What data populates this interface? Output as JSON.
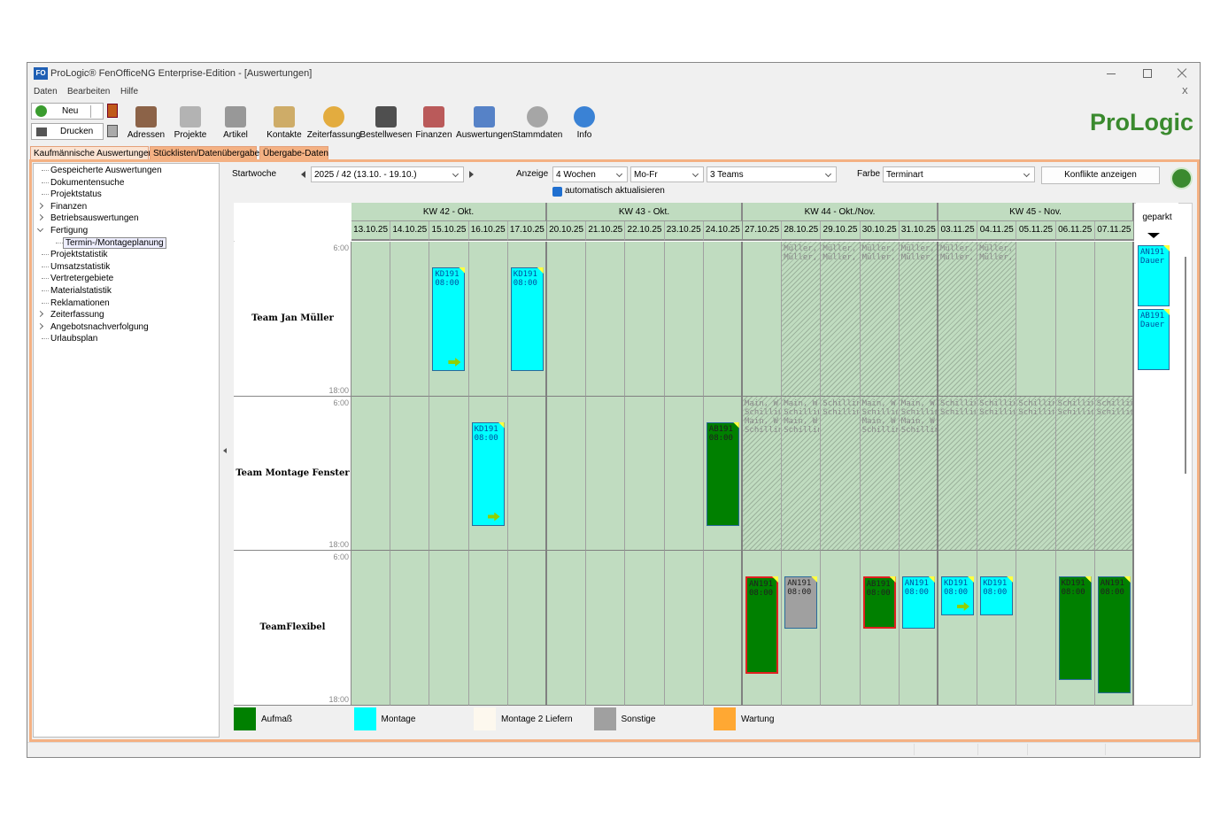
{
  "window": {
    "icon": "FO",
    "title": "ProLogic® FenOfficeNG Enterprise-Edition - [Auswertungen]"
  },
  "menu": {
    "items": [
      "Daten",
      "Bearbeiten",
      "Hilfe"
    ],
    "close": "X"
  },
  "toolbar": {
    "new": "Neu",
    "print": "Drucken",
    "buttons": [
      "Adressen",
      "Projekte",
      "Artikel",
      "Kontakte",
      "Zeiterfassung",
      "Bestellwesen",
      "Finanzen",
      "Auswertungen",
      "Stammdaten",
      "Info"
    ],
    "brand": "ProLogic"
  },
  "tabs": [
    "Kaufmännische Auswertungen",
    "Stücklisten/Datenübergaben",
    "Übergabe-Daten"
  ],
  "tree": [
    {
      "label": "Gespeicherte Auswertungen"
    },
    {
      "label": "Dokumentensuche"
    },
    {
      "label": "Projektstatus"
    },
    {
      "label": "Finanzen",
      "state": "collapsed"
    },
    {
      "label": "Betriebsauswertungen",
      "state": "collapsed"
    },
    {
      "label": "Fertigung",
      "state": "expanded",
      "children": [
        {
          "label": "Termin-/Montageplanung",
          "selected": true
        }
      ]
    },
    {
      "label": "Projektstatistik"
    },
    {
      "label": "Umsatzstatistik"
    },
    {
      "label": "Vertretergebiete"
    },
    {
      "label": "Materialstatistik"
    },
    {
      "label": "Reklamationen"
    },
    {
      "label": "Zeiterfassung",
      "state": "collapsed"
    },
    {
      "label": "Angebotsnachverfolgung",
      "state": "collapsed"
    },
    {
      "label": "Urlaubsplan"
    }
  ],
  "filters": {
    "start_label": "Startwoche",
    "start_week": "2025 / 42 (13.10. - 19.10.)",
    "display_label": "Anzeige",
    "display": "4 Wochen",
    "days": "Mo-Fr",
    "teams": "3 Teams",
    "color_label": "Farbe",
    "color_mode": "Terminart",
    "conflicts_button": "Konflikte anzeigen",
    "auto_refresh": "automatisch aktualisieren",
    "auto_refresh_checked": true
  },
  "calendar": {
    "weeks": [
      "KW 42 - Okt.",
      "KW 43 - Okt.",
      "KW 44 - Okt./Nov.",
      "KW 45 - Nov."
    ],
    "dates": [
      "13.10.25",
      "14.10.25",
      "15.10.25",
      "16.10.25",
      "17.10.25",
      "20.10.25",
      "21.10.25",
      "22.10.25",
      "23.10.25",
      "24.10.25",
      "27.10.25",
      "28.10.25",
      "29.10.25",
      "30.10.25",
      "31.10.25",
      "03.11.25",
      "04.11.25",
      "05.11.25",
      "06.11.25",
      "07.11.25"
    ],
    "time_start": "6:00",
    "time_end": "18:00",
    "teams": [
      {
        "name": "Team Jan Müller",
        "events": [
          null,
          null,
          {
            "lines": [
              "KD191",
              "08:00"
            ],
            "color": "#00ffff",
            "arrow": true
          },
          null,
          {
            "lines": [
              "KD191",
              "08:00"
            ],
            "color": "#00ffff"
          },
          null,
          null,
          null,
          null,
          null,
          null,
          null,
          null,
          null,
          null,
          null,
          null,
          null,
          null,
          null
        ],
        "blocked": [
          null,
          null,
          null,
          null,
          null,
          null,
          null,
          null,
          null,
          null,
          null,
          [
            "Müller, J",
            "Müller, J"
          ],
          [
            "Müller, J",
            "Müller, J"
          ],
          [
            "Müller, J",
            "Müller, J"
          ],
          [
            "Müller, J",
            "Müller, J"
          ],
          [
            "Müller, J",
            "Müller, J"
          ],
          [
            "Müller, J",
            "Müller, J"
          ],
          null,
          null,
          null
        ]
      },
      {
        "name": "Team Montage Fenster",
        "events": [
          null,
          null,
          null,
          {
            "lines": [
              "KD191",
              "08:00"
            ],
            "color": "#00ffff",
            "arrow": true
          },
          null,
          null,
          null,
          null,
          null,
          {
            "lines": [
              "AB191",
              "08:00"
            ],
            "color": "#008000"
          },
          null,
          null,
          null,
          null,
          null,
          null,
          null,
          null,
          null,
          null
        ],
        "blocked": [
          null,
          null,
          null,
          null,
          null,
          null,
          null,
          null,
          null,
          null,
          [
            "Main, W",
            "Schilling,",
            "Main, W",
            "Schilling,"
          ],
          [
            "Main, W",
            "Schilling,",
            "Main, W",
            "Schilling,"
          ],
          [
            "Schilling,",
            "Schilling,"
          ],
          [
            "Main, W",
            "Schilling,",
            "Main, W",
            "Schilling,"
          ],
          [
            "Main, W",
            "Schilling,",
            "Main, W",
            "Schilling,"
          ],
          [
            "Schilling,",
            "Schilling,"
          ],
          [
            "Schilling,",
            "Schilling,"
          ],
          [
            "Schilling,",
            "Schilling,"
          ],
          [
            "Schilling,",
            "Schilling,"
          ],
          [
            "Schilling,",
            "Schilling,"
          ]
        ]
      },
      {
        "name": "TeamFlexibel",
        "events": [
          null,
          null,
          null,
          null,
          null,
          null,
          null,
          null,
          null,
          null,
          {
            "lines": [
              "AN191",
              "08:00"
            ],
            "color": "#008000",
            "conflict": true
          },
          {
            "lines": [
              "AN191",
              "08:00"
            ],
            "color": "#a0a0a0"
          },
          null,
          {
            "lines": [
              "AB191",
              "08:00"
            ],
            "color": "#008000",
            "conflict": true
          },
          {
            "lines": [
              "AN191",
              "08:00"
            ],
            "color": "#00ffff"
          },
          {
            "lines": [
              "KD191",
              "08:00"
            ],
            "color": "#00ffff",
            "arrow": true
          },
          {
            "lines": [
              "KD191",
              "08:00"
            ],
            "color": "#00ffff"
          },
          null,
          {
            "lines": [
              "KD191",
              "08:00"
            ],
            "color": "#008000"
          },
          {
            "lines": [
              "AN191",
              "08:00"
            ],
            "color": "#008000"
          }
        ],
        "blocked": [
          null,
          null,
          null,
          null,
          null,
          null,
          null,
          null,
          null,
          null,
          null,
          null,
          null,
          null,
          null,
          null,
          null,
          null,
          null,
          null
        ]
      }
    ],
    "parked_label": "geparkt",
    "parked": [
      {
        "lines": [
          "AN191",
          "Dauer"
        ],
        "color": "#00ffff"
      },
      {
        "lines": [
          "AB191",
          "Dauer"
        ],
        "color": "#00ffff"
      }
    ],
    "legend": [
      {
        "name": "Aufmaß",
        "color": "#008000"
      },
      {
        "name": "Montage",
        "color": "#00ffff"
      },
      {
        "name": "Montage 2 Liefern",
        "color": "#fdf8ee"
      },
      {
        "name": "Sonstige",
        "color": "#a0a0a0"
      },
      {
        "name": "Wartung",
        "color": "#ffa833"
      }
    ]
  }
}
